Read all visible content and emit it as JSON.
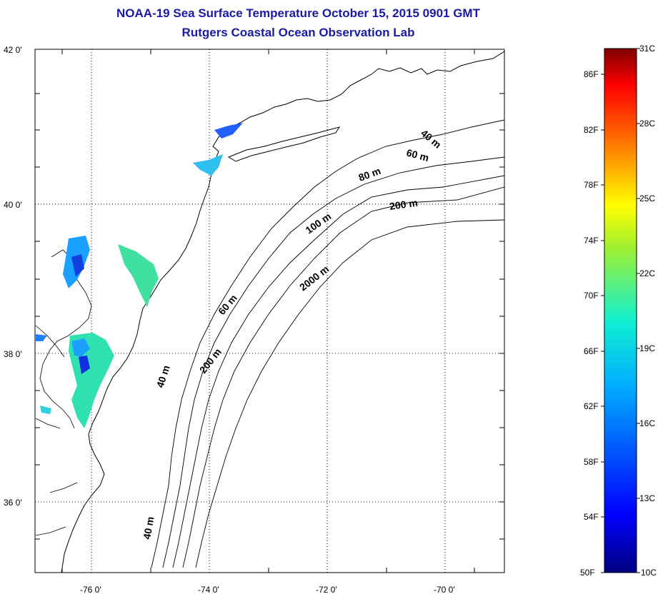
{
  "title": "NOAA-19 Sea Surface Temperature October 15, 2015 0901 GMT",
  "subtitle": "Rutgers Coastal Ocean Observation Lab",
  "lat_ticks": [
    "42 0'",
    "40 0'",
    "38 0'",
    "36 0'"
  ],
  "lon_ticks": [
    "-76 0'",
    "-74 0'",
    "-72 0'",
    "-70 0'"
  ],
  "depth_labels": [
    "40 m",
    "60 m",
    "80 m",
    "200 m",
    "100 m",
    "2000 m",
    "60 m",
    "200 m",
    "40 m",
    "40 m"
  ],
  "colorbar": {
    "fahrenheit": [
      "86F",
      "82F",
      "78F",
      "74F",
      "70F",
      "66F",
      "62F",
      "58F",
      "54F",
      "50F"
    ],
    "celsius": [
      "31C",
      "28C",
      "25C",
      "22C",
      "19C",
      "16C",
      "13C",
      "10C"
    ]
  },
  "colors": {
    "title": "#1a1aa6",
    "cold": "#00007f",
    "warm": "#7f0000",
    "water_temp": "#2fe0b0"
  }
}
